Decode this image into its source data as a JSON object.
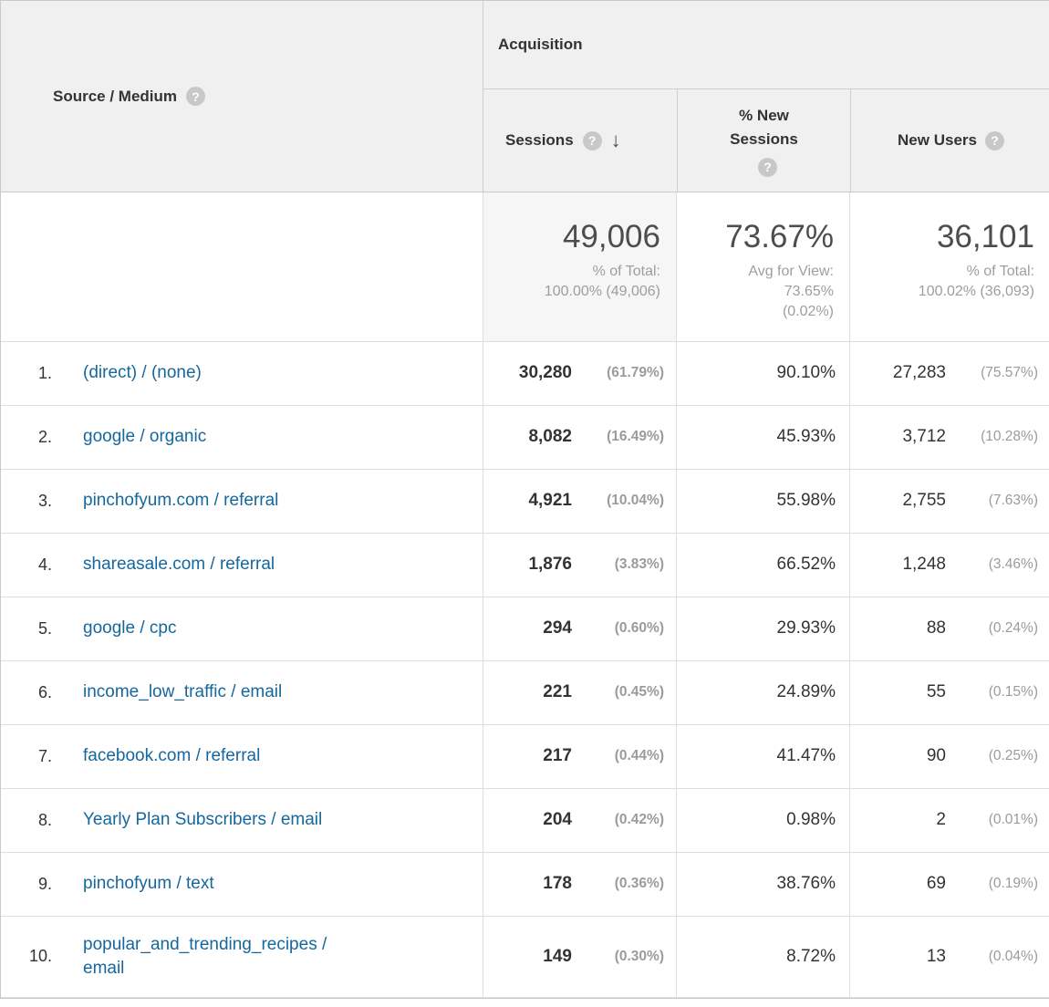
{
  "colors": {
    "link": "#15679d",
    "header_bg": "#f0f0f0"
  },
  "icons": {
    "help": "?",
    "sort_desc": "↓"
  },
  "header": {
    "source_medium": "Source / Medium",
    "acquisition": "Acquisition",
    "sessions": "Sessions",
    "new_sessions": "% New Sessions",
    "new_users": "New Users"
  },
  "summary": {
    "sessions_value": "49,006",
    "sessions_sub1": "% of Total:",
    "sessions_sub2": "100.00% (49,006)",
    "new_sessions_value": "73.67%",
    "new_sessions_sub1": "Avg for View:",
    "new_sessions_sub2": "73.65%",
    "new_sessions_sub3": "(0.02%)",
    "new_users_value": "36,101",
    "new_users_sub1": "% of Total:",
    "new_users_sub2": "100.02% (36,093)"
  },
  "rows": [
    {
      "rank": "1.",
      "source": "(direct) / (none)",
      "sessions": "30,280",
      "sessions_pct": "(61.79%)",
      "new_sessions": "90.10%",
      "new_users": "27,283",
      "new_users_pct": "(75.57%)"
    },
    {
      "rank": "2.",
      "source": "google / organic",
      "sessions": "8,082",
      "sessions_pct": "(16.49%)",
      "new_sessions": "45.93%",
      "new_users": "3,712",
      "new_users_pct": "(10.28%)"
    },
    {
      "rank": "3.",
      "source": "pinchofyum.com / referral",
      "sessions": "4,921",
      "sessions_pct": "(10.04%)",
      "new_sessions": "55.98%",
      "new_users": "2,755",
      "new_users_pct": "(7.63%)"
    },
    {
      "rank": "4.",
      "source": "shareasale.com / referral",
      "sessions": "1,876",
      "sessions_pct": "(3.83%)",
      "new_sessions": "66.52%",
      "new_users": "1,248",
      "new_users_pct": "(3.46%)"
    },
    {
      "rank": "5.",
      "source": "google / cpc",
      "sessions": "294",
      "sessions_pct": "(0.60%)",
      "new_sessions": "29.93%",
      "new_users": "88",
      "new_users_pct": "(0.24%)"
    },
    {
      "rank": "6.",
      "source": "income_low_traffic / email",
      "sessions": "221",
      "sessions_pct": "(0.45%)",
      "new_sessions": "24.89%",
      "new_users": "55",
      "new_users_pct": "(0.15%)"
    },
    {
      "rank": "7.",
      "source": "facebook.com / referral",
      "sessions": "217",
      "sessions_pct": "(0.44%)",
      "new_sessions": "41.47%",
      "new_users": "90",
      "new_users_pct": "(0.25%)"
    },
    {
      "rank": "8.",
      "source": "Yearly Plan Subscribers / email",
      "sessions": "204",
      "sessions_pct": "(0.42%)",
      "new_sessions": "0.98%",
      "new_users": "2",
      "new_users_pct": "(0.01%)"
    },
    {
      "rank": "9.",
      "source": "pinchofyum / text",
      "sessions": "178",
      "sessions_pct": "(0.36%)",
      "new_sessions": "38.76%",
      "new_users": "69",
      "new_users_pct": "(0.19%)"
    },
    {
      "rank": "10.",
      "source": "popular_and_trending_recipes / email",
      "sessions": "149",
      "sessions_pct": "(0.30%)",
      "new_sessions": "8.72%",
      "new_users": "13",
      "new_users_pct": "(0.04%)"
    }
  ]
}
